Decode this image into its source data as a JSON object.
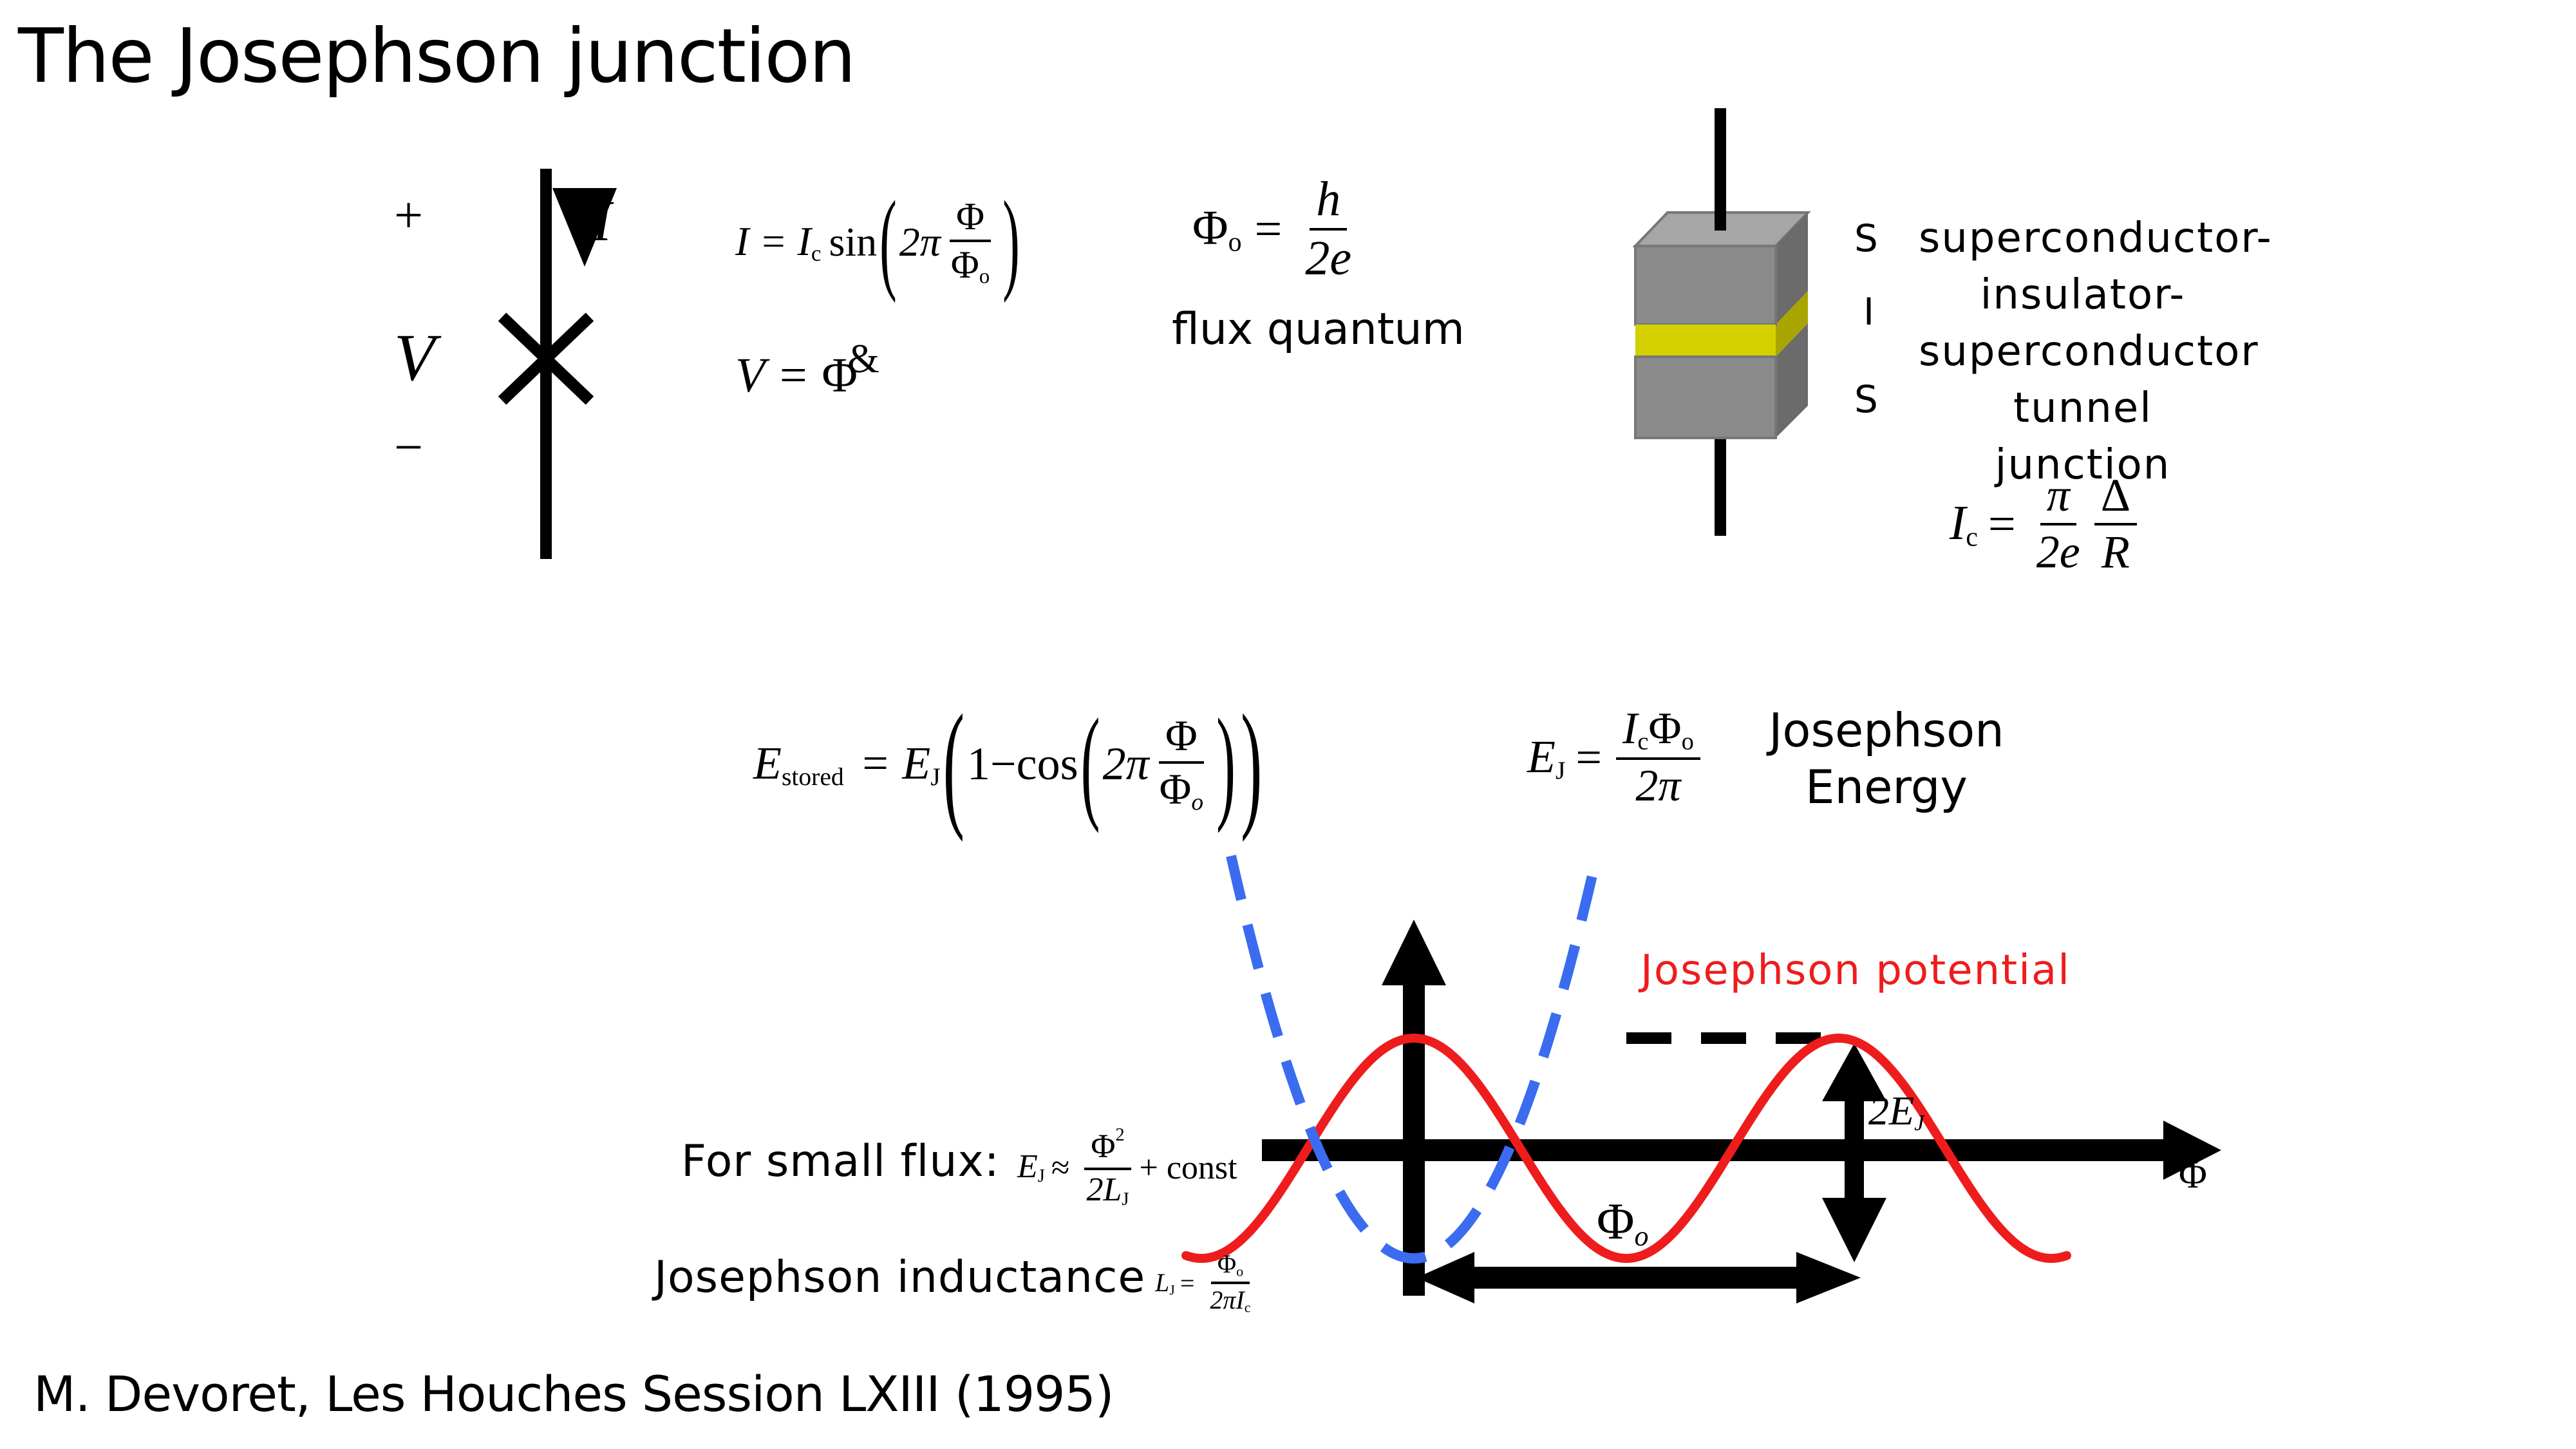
{
  "slide": {
    "title": "The Josephson junction",
    "citation": "M. Devoret, Les Houches Session LXIII (1995)"
  },
  "circuit": {
    "plus": "+",
    "minus": "−",
    "voltage": "V",
    "current": "I"
  },
  "equations": {
    "current_relation": {
      "lhs": "I = I",
      "lhs_sub": "c",
      "func": "sin",
      "coef": "2π",
      "num": "Φ",
      "den": "Φ",
      "den_sub": "o"
    },
    "voltage_relation": {
      "lhs": "V = ",
      "rhs": "Φ",
      "dot": "&"
    },
    "flux_quantum": {
      "lhs": "Φ",
      "lhs_sub": "o",
      "eq": "=",
      "num": "h",
      "den": "2e",
      "caption": "flux quantum"
    },
    "critical_current": {
      "lhs": "I",
      "lhs_sub": "c",
      "eq": "=",
      "num1": "π",
      "den1": "2e",
      "num2": "Δ",
      "den2": "R"
    },
    "stored_energy": {
      "lhs": "E",
      "lhs_sub": "stored",
      "eq": "= E",
      "eq_sub": "J",
      "one_minus": "1−cos",
      "coef": "2π",
      "num": "Φ",
      "den": "Φ",
      "den_sub": "o"
    },
    "josephson_energy": {
      "lhs": "E",
      "lhs_sub": "J",
      "eq": "=",
      "num": "I",
      "num_sub": "c",
      "num2": "Φ",
      "num2_sub": "o",
      "den": "2π",
      "label_line1": "Josephson",
      "label_line2": "Energy"
    },
    "small_flux": {
      "label": "For small flux:",
      "lhs": "E",
      "lhs_sub": "J",
      "approx": "≈",
      "num": "Φ",
      "num_sup": "2",
      "den": "2L",
      "den_sub": "J",
      "tail": "+ const"
    },
    "inductance": {
      "label": "Josephson inductance",
      "lhs": "L",
      "lhs_sub": "J",
      "eq": "=",
      "num": "Φ",
      "num_sub": "o",
      "den": "2πI",
      "den_sub": "c"
    }
  },
  "junction": {
    "layers": [
      "S",
      "I",
      "S"
    ],
    "description": [
      "superconductor-",
      "insulator-",
      "superconductor",
      "tunnel junction"
    ],
    "colors": {
      "superconductor": "#8a8a8a",
      "insulator": "#d4d000"
    }
  },
  "plot": {
    "curve_label": "Josephson potential",
    "x_axis_label": "Φ",
    "period_label": "Φ",
    "period_label_sub": "o",
    "barrier_label": "2E",
    "barrier_label_sub": "J",
    "colors": {
      "potential": "#ee1c1c",
      "parabola": "#3b6cf0",
      "axes": "#000000"
    }
  }
}
